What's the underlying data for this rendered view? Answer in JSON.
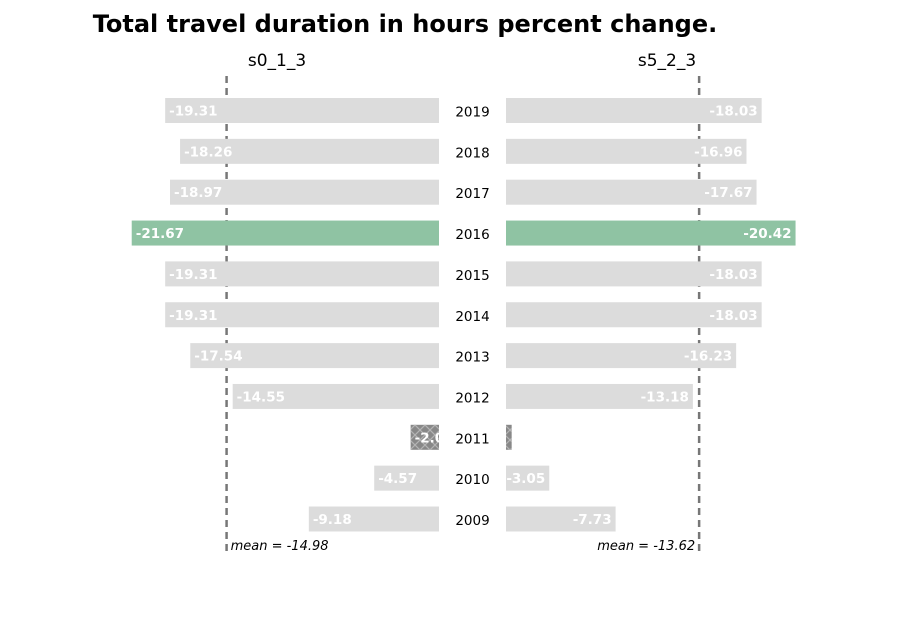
{
  "chart_data": {
    "type": "bar",
    "title": "Total travel duration in hours percent change.",
    "categories": [
      "2019",
      "2018",
      "2017",
      "2016",
      "2015",
      "2014",
      "2013",
      "2012",
      "2011",
      "2010",
      "2009"
    ],
    "series": [
      {
        "name": "s0_1_3",
        "values": [
          -19.31,
          -18.26,
          -18.97,
          -21.67,
          -19.31,
          -19.31,
          -17.54,
          -14.55,
          -2.0,
          -4.57,
          -9.18
        ],
        "labels": [
          "-19.31",
          "-18.26",
          "-18.97",
          "-21.67",
          "-19.31",
          "-19.31",
          "-17.54",
          "-14.55",
          "-2.0",
          "-4.57",
          "-9.18"
        ],
        "mean": -14.98,
        "mean_label": "mean = -14.98"
      },
      {
        "name": "s5_2_3",
        "values": [
          -18.03,
          -16.96,
          -17.67,
          -20.42,
          -18.03,
          -18.03,
          -16.23,
          -13.18,
          -0.4,
          -3.05,
          -7.73
        ],
        "labels": [
          "-18.03",
          "-16.96",
          "-17.67",
          "-20.42",
          "-18.03",
          "-18.03",
          "-16.23",
          "-13.18",
          "",
          "-3.05",
          "-7.73"
        ],
        "mean": -13.62,
        "mean_label": "mean = -13.62"
      }
    ],
    "highlight_category": "2016",
    "hatched_category": "2011",
    "colors": {
      "bar": "#dcdcdc",
      "highlight": "#8fc3a3",
      "hatched": "#888888",
      "mean_line": "#777777",
      "bar_label": "#ffffff"
    },
    "grid": false,
    "legend": "none"
  }
}
